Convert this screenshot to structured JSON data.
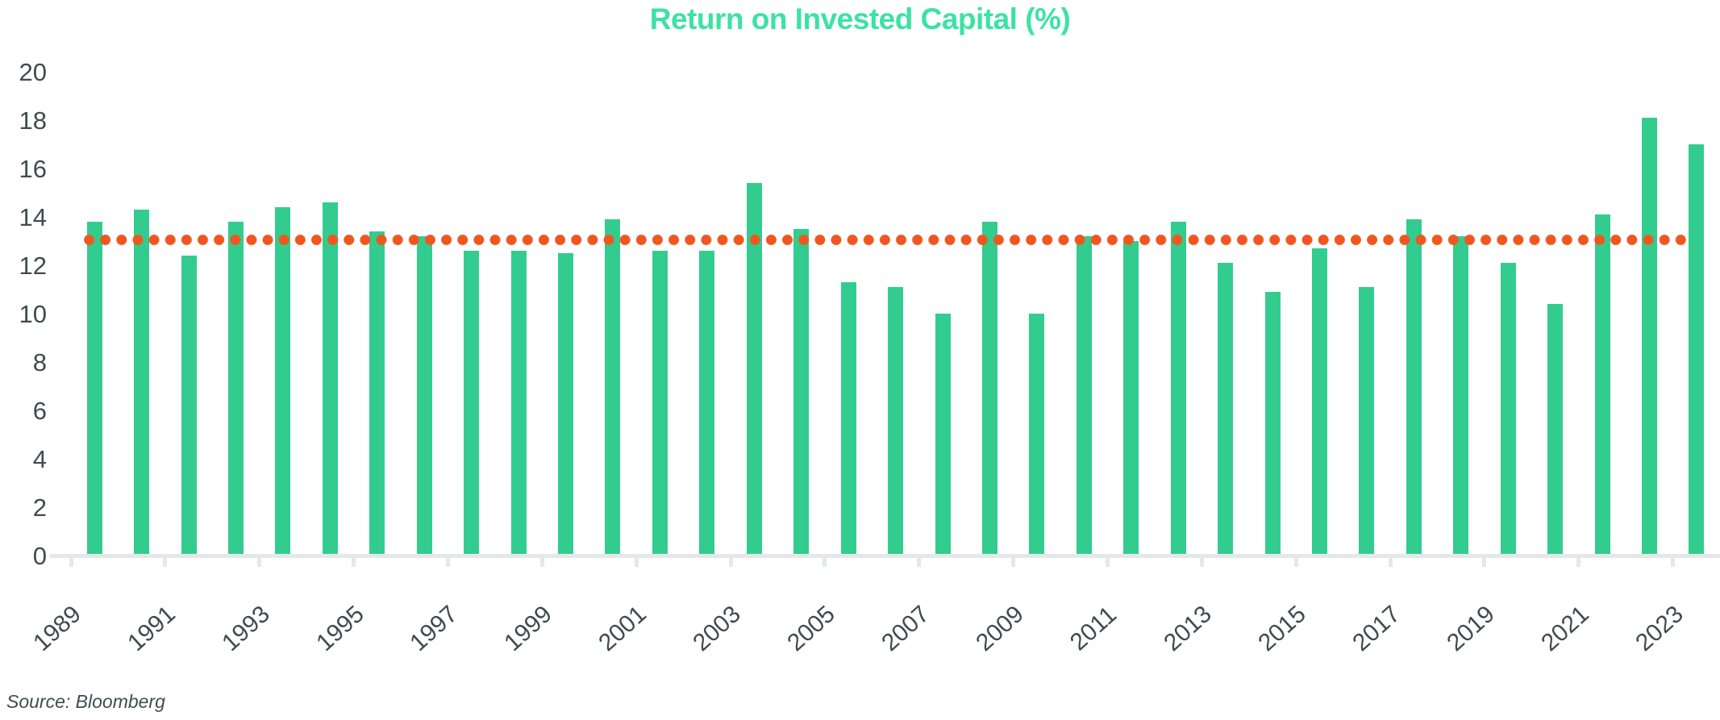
{
  "chart_data": {
    "type": "bar",
    "title": "Return on Invested Capital (%)",
    "source": "Source: Bloomberg",
    "categories": [
      "1989",
      "1990",
      "1991",
      "1992",
      "1993",
      "1994",
      "1995",
      "1996",
      "1997",
      "1998",
      "1999",
      "2000",
      "2001",
      "2002",
      "2003",
      "2004",
      "2005",
      "2006",
      "2007",
      "2008",
      "2009",
      "2010",
      "2011",
      "2012",
      "2013",
      "2014",
      "2015",
      "2016",
      "2017",
      "2018",
      "2019",
      "2020",
      "2021",
      "2022",
      "2023"
    ],
    "values": [
      13.8,
      14.3,
      12.4,
      13.8,
      14.4,
      14.6,
      13.4,
      13.2,
      12.6,
      12.6,
      12.5,
      13.9,
      12.6,
      12.6,
      15.4,
      13.5,
      11.3,
      11.1,
      10.0,
      13.8,
      10.0,
      13.2,
      13.0,
      13.8,
      12.1,
      10.9,
      12.7,
      11.1,
      13.9,
      13.2,
      12.1,
      10.4,
      14.1,
      18.1,
      17.0
    ],
    "x_tick_labels": [
      "1989",
      "1991",
      "1993",
      "1995",
      "1997",
      "1999",
      "2001",
      "2003",
      "2005",
      "2007",
      "2009",
      "2011",
      "2013",
      "2015",
      "2017",
      "2019",
      "2021",
      "2023"
    ],
    "y_ticks": [
      0,
      2,
      4,
      6,
      8,
      10,
      12,
      14,
      16,
      18,
      20
    ],
    "ylim": [
      0,
      20
    ],
    "xlabel": "",
    "ylabel": "",
    "grid": "off",
    "legend": "none",
    "reference_line": {
      "value": 13.05,
      "style": "dotted",
      "color": "#F0571F"
    },
    "colors": {
      "bar": "#33CC8F",
      "title": "#3BE3A2",
      "axis_text": "#3E4C50",
      "axis_line": "#E4E8E8",
      "source_text": "#3E4E52",
      "background": "#FFFFFF"
    }
  }
}
